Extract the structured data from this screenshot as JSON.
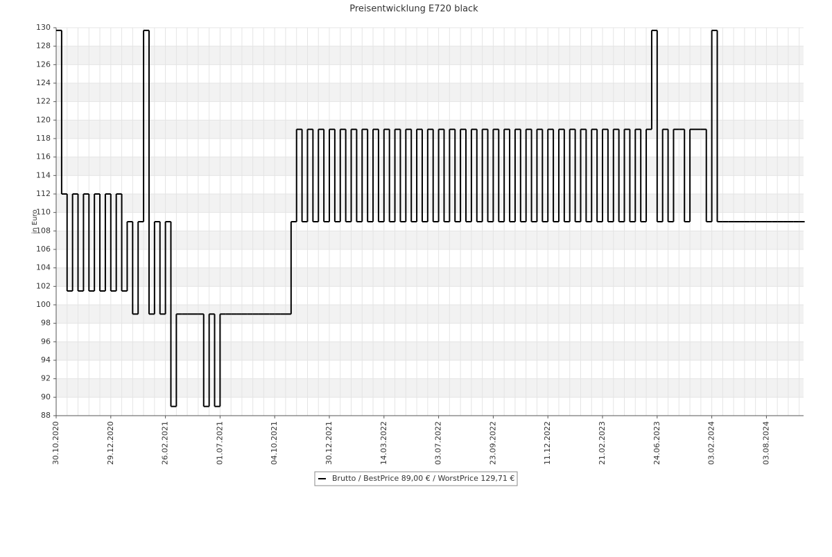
{
  "chart_data": {
    "type": "line",
    "title": "Preisentwicklung E720 black",
    "y_label": "in Euro",
    "legend": "Brutto / BestPrice  89,00 € / WorstPrice  129,71 €",
    "color": "#000000",
    "grid": true,
    "ylim": [
      88,
      130
    ],
    "yticks": [
      88,
      90,
      92,
      94,
      96,
      98,
      100,
      102,
      104,
      106,
      108,
      110,
      112,
      114,
      116,
      118,
      120,
      122,
      124,
      126,
      128,
      130
    ],
    "categories": [
      "30.10.2020",
      null,
      null,
      null,
      null,
      null,
      null,
      null,
      null,
      null,
      "29.12.2020",
      null,
      null,
      null,
      null,
      null,
      null,
      null,
      null,
      null,
      "26.02.2021",
      null,
      null,
      null,
      null,
      null,
      null,
      null,
      null,
      null,
      "01.07.2021",
      null,
      null,
      null,
      null,
      null,
      null,
      null,
      null,
      null,
      "04.10.2021",
      null,
      null,
      null,
      null,
      null,
      null,
      null,
      null,
      null,
      "30.12.2021",
      null,
      null,
      null,
      null,
      null,
      null,
      null,
      null,
      null,
      "14.03.2022",
      null,
      null,
      null,
      null,
      null,
      null,
      null,
      null,
      null,
      "03.07.2022",
      null,
      null,
      null,
      null,
      null,
      null,
      null,
      null,
      null,
      "23.09.2022",
      null,
      null,
      null,
      null,
      null,
      null,
      null,
      null,
      null,
      "11.12.2022",
      null,
      null,
      null,
      null,
      null,
      null,
      null,
      null,
      null,
      "21.02.2023",
      null,
      null,
      null,
      null,
      null,
      null,
      null,
      null,
      null,
      "24.06.2023",
      null,
      null,
      null,
      null,
      null,
      null,
      null,
      null,
      null,
      "03.02.2024",
      null,
      null,
      null,
      null,
      null,
      null,
      null,
      null,
      null,
      "03.08.2024",
      null,
      null,
      null,
      null,
      null,
      null
    ],
    "values": [
      129.71,
      112,
      101.5,
      112,
      101.5,
      112,
      101.5,
      112,
      101.5,
      112,
      101.5,
      112,
      101.5,
      109,
      99,
      109,
      129.71,
      99,
      109,
      99,
      109,
      89,
      99,
      99,
      99,
      99,
      99,
      89,
      99,
      89,
      99,
      99,
      99,
      99,
      99,
      99,
      99,
      99,
      99,
      99,
      99,
      99,
      99,
      109,
      119,
      109,
      119,
      109,
      119,
      109,
      119,
      109,
      119,
      109,
      119,
      109,
      119,
      109,
      119,
      109,
      119,
      109,
      119,
      109,
      119,
      109,
      119,
      109,
      119,
      109,
      119,
      109,
      119,
      109,
      119,
      109,
      119,
      109,
      119,
      109,
      119,
      109,
      119,
      109,
      119,
      109,
      119,
      109,
      119,
      109,
      119,
      109,
      119,
      109,
      119,
      109,
      119,
      109,
      119,
      109,
      119,
      109,
      119,
      109,
      119,
      109,
      119,
      109,
      119,
      129.71,
      109,
      119,
      109,
      119,
      119,
      109,
      119,
      119,
      119,
      109,
      129.71,
      109,
      109,
      109,
      109,
      109,
      109,
      109,
      109,
      109,
      109,
      109,
      109,
      109,
      109,
      109,
      109
    ]
  }
}
